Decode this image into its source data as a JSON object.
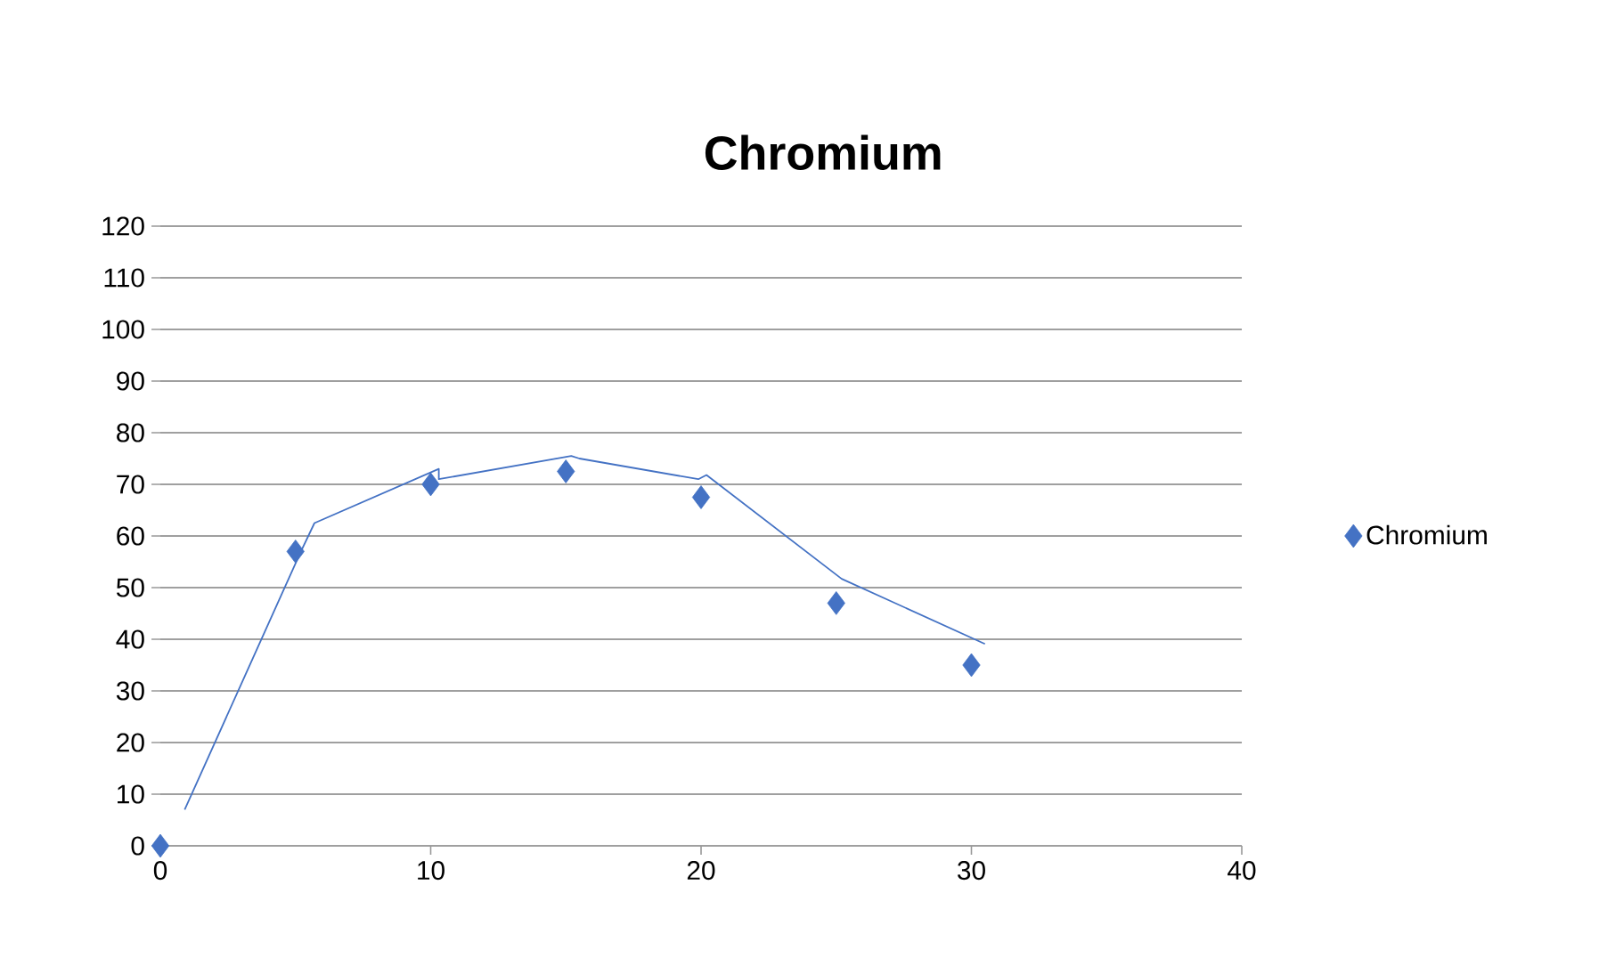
{
  "chart_data": {
    "type": "scatter",
    "title": "Chromium",
    "xlim": [
      0,
      40
    ],
    "xticks": [
      0,
      10,
      20,
      30,
      40
    ],
    "ylim": [
      0,
      120
    ],
    "yticks": [
      0,
      10,
      20,
      30,
      40,
      50,
      60,
      70,
      80,
      90,
      100,
      110,
      120
    ],
    "grid": "y",
    "legend": "right",
    "marker": "diamond",
    "series": [
      {
        "name": "Chromium",
        "color": "#4472c4",
        "x": [
          0,
          5,
          10,
          15,
          20,
          25,
          30
        ],
        "values": [
          0,
          57,
          70,
          72.5,
          67.5,
          47,
          35
        ]
      },
      {
        "type": "line",
        "color": "#4472c4",
        "marker": "none",
        "line_style": "solid",
        "x": [
          0.9,
          5.2,
          5.7,
          10.3,
          10.3,
          15.2,
          15.5,
          19.9,
          20.2,
          25.2,
          30.5
        ],
        "values": [
          7,
          57,
          62.5,
          73,
          71,
          75.5,
          75,
          71,
          71.8,
          51.7,
          39.1
        ]
      }
    ]
  }
}
